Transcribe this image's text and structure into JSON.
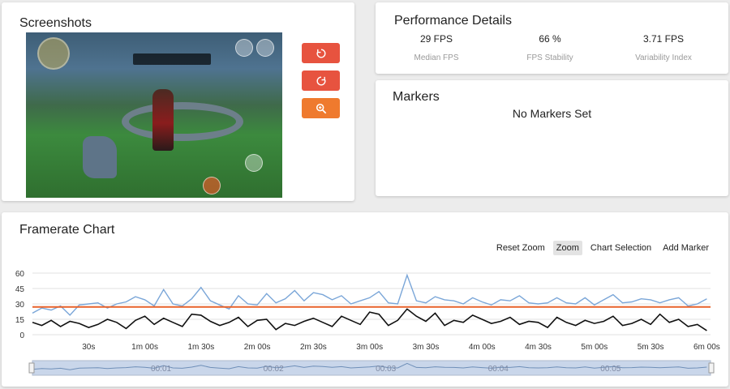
{
  "screenshots": {
    "title": "Screenshots"
  },
  "buttons": [
    {
      "name": "rotate-left-button",
      "icon": "rotate-left-icon",
      "color": "#e7533f"
    },
    {
      "name": "rotate-right-button",
      "icon": "rotate-right-icon",
      "color": "#e7533f"
    },
    {
      "name": "zoom-screenshot-button",
      "icon": "magnifier-icon",
      "color": "#ef7a2e"
    }
  ],
  "performance": {
    "title": "Performance Details",
    "stats": [
      {
        "value": "29 FPS",
        "label": "Median FPS"
      },
      {
        "value": "66 %",
        "label": "FPS Stability"
      },
      {
        "value": "3.71 FPS",
        "label": "Variability Index"
      }
    ]
  },
  "markers": {
    "title": "Markers",
    "empty_text": "No Markers Set"
  },
  "chart_toolbar": {
    "reset_zoom": "Reset Zoom",
    "zoom": "Zoom",
    "chart_selection": "Chart Selection",
    "add_marker": "Add Marker"
  },
  "navigator_labels": [
    "00:01",
    "00:02",
    "00:03",
    "00:04",
    "00:05"
  ],
  "chart_data": {
    "type": "line",
    "title": "Framerate Chart",
    "xlabel": "",
    "ylabel": "",
    "ylim": [
      0,
      60
    ],
    "yticks": [
      0,
      15,
      30,
      45,
      60
    ],
    "xticks": [
      "30s",
      "1m 00s",
      "1m 30s",
      "2m 00s",
      "2m 30s",
      "3m 00s",
      "3m 30s",
      "4m 00s",
      "4m 30s",
      "5m 00s",
      "5m 30s",
      "6m 00s"
    ],
    "xtick_seconds": [
      30,
      60,
      90,
      120,
      150,
      180,
      210,
      240,
      270,
      300,
      330,
      360
    ],
    "xlim_seconds": [
      0,
      362
    ],
    "reference_line": {
      "value": 27,
      "color": "#e8622a"
    },
    "grid": true,
    "series": [
      {
        "color": "#7aa6d8",
        "x": [
          0,
          5,
          10,
          15,
          20,
          25,
          30,
          35,
          40,
          45,
          50,
          55,
          60,
          65,
          70,
          75,
          80,
          85,
          90,
          95,
          100,
          105,
          110,
          115,
          120,
          125,
          130,
          135,
          140,
          145,
          150,
          155,
          160,
          165,
          170,
          175,
          180,
          185,
          190,
          195,
          200,
          205,
          210,
          215,
          220,
          225,
          230,
          235,
          240,
          245,
          250,
          255,
          260,
          265,
          270,
          275,
          280,
          285,
          290,
          295,
          300,
          305,
          310,
          315,
          320,
          325,
          330,
          335,
          340,
          345,
          350,
          355,
          360
        ],
        "values": [
          21,
          26,
          24,
          28,
          19,
          29,
          30,
          31,
          26,
          30,
          32,
          37,
          34,
          28,
          44,
          30,
          28,
          35,
          46,
          33,
          29,
          25,
          38,
          30,
          29,
          40,
          31,
          35,
          43,
          33,
          41,
          39,
          34,
          38,
          30,
          33,
          36,
          42,
          31,
          30,
          58,
          33,
          31,
          37,
          34,
          33,
          30,
          36,
          32,
          29,
          34,
          33,
          38,
          31,
          30,
          31,
          36,
          31,
          30,
          36,
          29,
          34,
          39,
          31,
          32,
          35,
          34,
          31,
          34,
          36,
          28,
          30,
          35
        ]
      },
      {
        "color": "#111111",
        "x": [
          0,
          5,
          10,
          15,
          20,
          25,
          30,
          35,
          40,
          45,
          50,
          55,
          60,
          65,
          70,
          75,
          80,
          85,
          90,
          95,
          100,
          105,
          110,
          115,
          120,
          125,
          130,
          135,
          140,
          145,
          150,
          155,
          160,
          165,
          170,
          175,
          180,
          185,
          190,
          195,
          200,
          205,
          210,
          215,
          220,
          225,
          230,
          235,
          240,
          245,
          250,
          255,
          260,
          265,
          270,
          275,
          280,
          285,
          290,
          295,
          300,
          305,
          310,
          315,
          320,
          325,
          330,
          335,
          340,
          345,
          350,
          355,
          360
        ],
        "values": [
          12,
          9,
          14,
          8,
          13,
          11,
          7,
          10,
          15,
          12,
          6,
          14,
          18,
          10,
          16,
          12,
          8,
          20,
          19,
          13,
          9,
          12,
          17,
          8,
          14,
          15,
          5,
          11,
          9,
          13,
          16,
          12,
          8,
          18,
          14,
          10,
          22,
          20,
          9,
          14,
          25,
          18,
          13,
          21,
          9,
          14,
          12,
          19,
          15,
          11,
          13,
          17,
          10,
          13,
          12,
          7,
          17,
          12,
          9,
          14,
          11,
          13,
          18,
          9,
          11,
          15,
          10,
          20,
          12,
          15,
          8,
          10,
          4
        ]
      }
    ]
  }
}
